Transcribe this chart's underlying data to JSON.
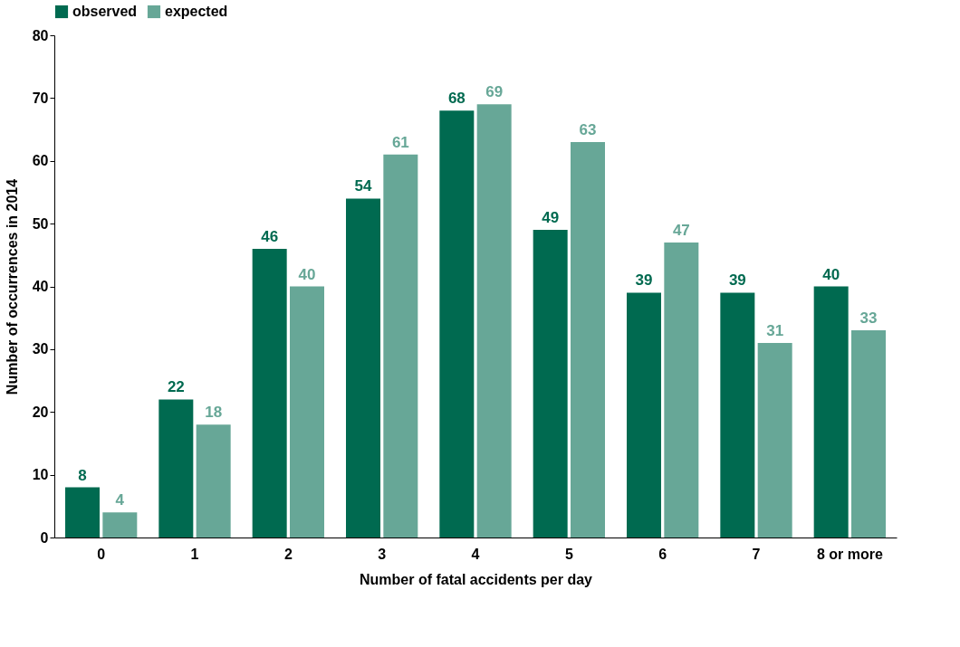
{
  "chart_data": {
    "type": "bar",
    "xlabel": "Number of fatal accidents per day",
    "ylabel": "Number of occurrences in 2014",
    "categories": [
      "0",
      "1",
      "2",
      "3",
      "4",
      "5",
      "6",
      "7",
      "8 or more"
    ],
    "series": [
      {
        "name": "observed",
        "color": "#006a50",
        "values": [
          8,
          22,
          46,
          54,
          68,
          49,
          39,
          39,
          40
        ]
      },
      {
        "name": "expected",
        "color": "#67a797",
        "values": [
          4,
          18,
          40,
          61,
          69,
          63,
          47,
          31,
          33
        ]
      }
    ],
    "ylim": [
      0,
      80
    ],
    "yticks": [
      0,
      10,
      20,
      30,
      40,
      50,
      60,
      70,
      80
    ],
    "grid": false,
    "legend": "top",
    "data_labels": true
  }
}
